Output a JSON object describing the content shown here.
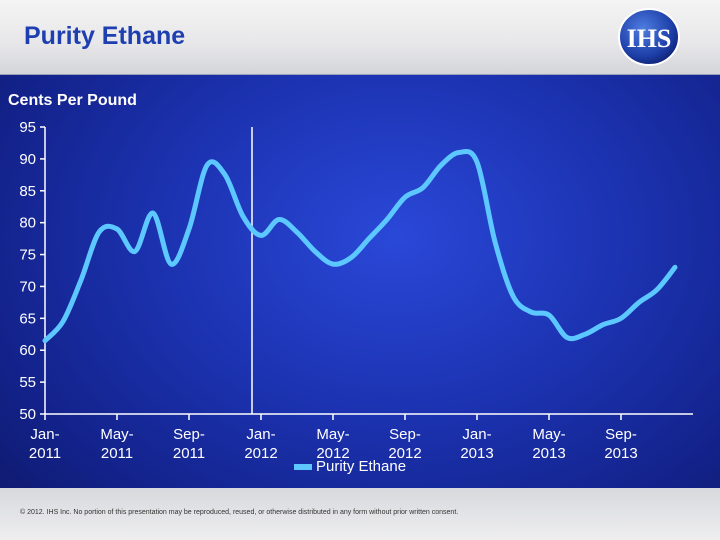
{
  "header": {
    "title": "Purity Ethane",
    "logo_text": "IHS"
  },
  "footer": {
    "copyright": "© 2012. IHS Inc. No portion of this presentation may be reproduced, reused, or otherwise distributed in any form without prior written consent."
  },
  "colors": {
    "line": "#5cc8ff",
    "header_title": "#1d3fb2",
    "background": "#1c33b2",
    "divider": "#ffffff"
  },
  "chart_data": {
    "type": "line",
    "ylabel": "Cents Per Pound",
    "ylim": [
      50,
      95
    ],
    "yticks": [
      50,
      55,
      60,
      65,
      70,
      75,
      80,
      85,
      90,
      95
    ],
    "x_tick_labels": [
      {
        "line1": "Jan-",
        "line2": "2011"
      },
      {
        "line1": "May-",
        "line2": "2011"
      },
      {
        "line1": "Sep-",
        "line2": "2011"
      },
      {
        "line1": "Jan-",
        "line2": "2012"
      },
      {
        "line1": "May-",
        "line2": "2012"
      },
      {
        "line1": "Sep-",
        "line2": "2012"
      },
      {
        "line1": "Jan-",
        "line2": "2013"
      },
      {
        "line1": "May-",
        "line2": "2013"
      },
      {
        "line1": "Sep-",
        "line2": "2013"
      }
    ],
    "x_tick_months": [
      0,
      4,
      8,
      12,
      16,
      20,
      24,
      28,
      32
    ],
    "x_range_months": [
      0,
      34
    ],
    "divider_month": 11.5,
    "legend": {
      "position": "bottom-center",
      "label": "Purity Ethane"
    },
    "series": [
      {
        "name": "Purity Ethane",
        "points": [
          [
            0,
            61.5
          ],
          [
            1,
            64.5
          ],
          [
            2,
            71
          ],
          [
            3,
            78.5
          ],
          [
            4,
            79
          ],
          [
            5,
            75.5
          ],
          [
            6,
            81.5
          ],
          [
            7,
            73.5
          ],
          [
            8,
            79
          ],
          [
            9,
            89
          ],
          [
            10,
            87.5
          ],
          [
            11,
            81
          ],
          [
            12,
            78
          ],
          [
            13,
            80.5
          ],
          [
            14,
            78.5
          ],
          [
            15,
            75.5
          ],
          [
            16,
            73.5
          ],
          [
            17,
            74.5
          ],
          [
            18,
            77.5
          ],
          [
            19,
            80.5
          ],
          [
            20,
            84
          ],
          [
            21,
            85.5
          ],
          [
            22,
            89
          ],
          [
            23,
            91
          ],
          [
            24,
            89.5
          ],
          [
            25,
            77
          ],
          [
            26,
            68.5
          ],
          [
            27,
            66
          ],
          [
            28,
            65.5
          ],
          [
            29,
            62
          ],
          [
            30,
            62.5
          ],
          [
            31,
            64
          ],
          [
            32,
            65
          ],
          [
            33,
            67.5
          ],
          [
            34,
            69.5
          ],
          [
            35,
            73
          ]
        ]
      }
    ]
  }
}
